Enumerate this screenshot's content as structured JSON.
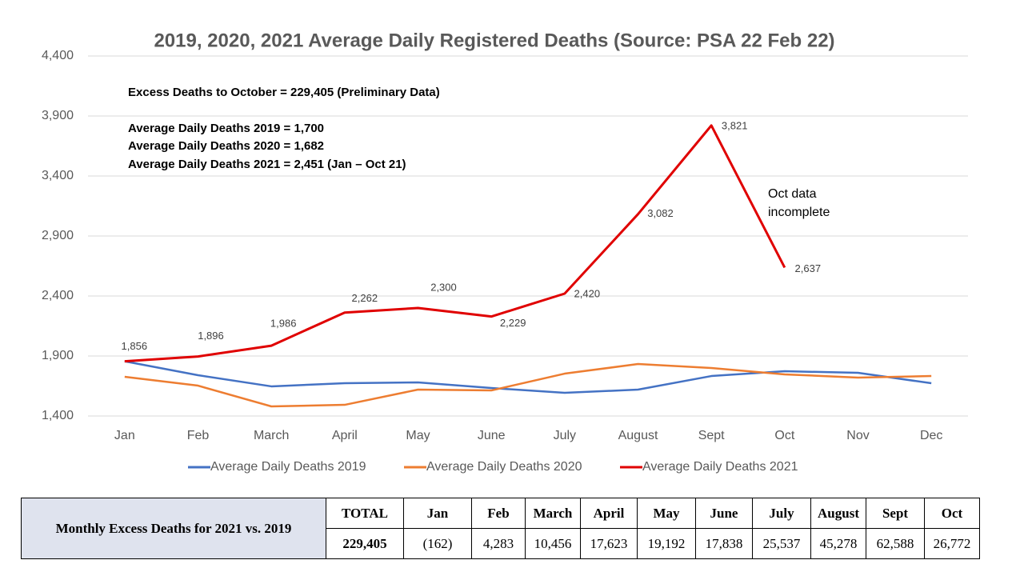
{
  "chart_data": {
    "type": "line",
    "title": "2019, 2020, 2021 Average Daily Registered Deaths (Source: PSA 22 Feb 22)",
    "annotations": [
      "Excess Deaths to October = 229,405 (Preliminary Data)",
      "Average Daily Deaths 2019 = 1,700",
      "Average Daily Deaths 2020 = 1,682",
      "Average Daily Deaths 2021 = 2,451 (Jan – Oct 21)"
    ],
    "note": [
      "Oct data",
      "incomplete"
    ],
    "categories": [
      "Jan",
      "Feb",
      "March",
      "April",
      "May",
      "June",
      "July",
      "August",
      "Sept",
      "Oct",
      "Nov",
      "Dec"
    ],
    "series": [
      {
        "name": "Average Daily Deaths 2019",
        "color": "#4472c4",
        "values": [
          1856,
          1740,
          1647,
          1673,
          1680,
          1633,
          1593,
          1620,
          1733,
          1773,
          1760,
          1673
        ]
      },
      {
        "name": "Average Daily Deaths 2020",
        "color": "#ed7d31",
        "values": [
          1727,
          1653,
          1480,
          1493,
          1620,
          1613,
          1753,
          1833,
          1800,
          1747,
          1720,
          1733
        ]
      },
      {
        "name": "Average Daily Deaths 2021",
        "color": "#e00000",
        "values": [
          1856,
          1896,
          1986,
          2262,
          2300,
          2229,
          2420,
          3082,
          3821,
          2637,
          null,
          null
        ],
        "value_labels": [
          "1,856",
          "1,896",
          "1,986",
          "2,262",
          "2,300",
          "2,229",
          "2,420",
          "3,082",
          "3,821",
          "2,637",
          null,
          null
        ]
      }
    ],
    "ylim": [
      1400,
      4400
    ],
    "yticks": [
      {
        "value": 1400,
        "label": "1,400"
      },
      {
        "value": 1900,
        "label": "1,900"
      },
      {
        "value": 2400,
        "label": "2,400"
      },
      {
        "value": 2900,
        "label": "2,900"
      },
      {
        "value": 3400,
        "label": "3,400"
      },
      {
        "value": 3900,
        "label": "3,900"
      },
      {
        "value": 4400,
        "label": "4,400"
      }
    ],
    "grid": true,
    "legend": "bottom"
  },
  "table": {
    "header": "Monthly Excess Deaths for 2021 vs. 2019",
    "columns": [
      "TOTAL",
      "Jan",
      "Feb",
      "March",
      "April",
      "May",
      "June",
      "July",
      "August",
      "Sept",
      "Oct"
    ],
    "values": [
      "229,405",
      "(162)",
      "4,283",
      "10,456",
      "17,623",
      "19,192",
      "17,838",
      "25,537",
      "45,278",
      "62,588",
      "26,772"
    ]
  }
}
